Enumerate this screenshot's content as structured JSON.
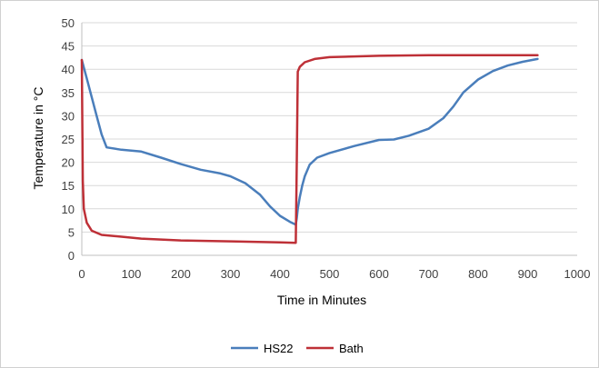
{
  "chart_data": {
    "type": "line",
    "title": "",
    "xlabel": "Time in Minutes",
    "ylabel": "Temperature in °C",
    "xlim": [
      0,
      1000
    ],
    "ylim": [
      0,
      50
    ],
    "xticks": [
      0,
      100,
      200,
      300,
      400,
      500,
      600,
      700,
      800,
      900,
      1000
    ],
    "yticks": [
      0,
      5,
      10,
      15,
      20,
      25,
      30,
      35,
      40,
      45,
      50
    ],
    "grid": "horizontal",
    "legend": "bottom",
    "series": [
      {
        "name": "HS22",
        "color": "#4a7ebb",
        "points": [
          [
            0,
            42
          ],
          [
            10,
            38
          ],
          [
            20,
            34
          ],
          [
            30,
            30
          ],
          [
            40,
            26
          ],
          [
            50,
            23.2
          ],
          [
            80,
            22.7
          ],
          [
            120,
            22.3
          ],
          [
            160,
            21
          ],
          [
            200,
            19.6
          ],
          [
            240,
            18.4
          ],
          [
            280,
            17.6
          ],
          [
            300,
            17
          ],
          [
            330,
            15.5
          ],
          [
            360,
            13
          ],
          [
            380,
            10.5
          ],
          [
            400,
            8.5
          ],
          [
            420,
            7.2
          ],
          [
            432,
            6.6
          ],
          [
            434,
            8
          ],
          [
            436,
            10
          ],
          [
            440,
            12.5
          ],
          [
            445,
            15
          ],
          [
            450,
            17
          ],
          [
            460,
            19.5
          ],
          [
            475,
            21
          ],
          [
            500,
            22
          ],
          [
            550,
            23.5
          ],
          [
            600,
            24.8
          ],
          [
            630,
            24.9
          ],
          [
            660,
            25.7
          ],
          [
            700,
            27.2
          ],
          [
            730,
            29.5
          ],
          [
            750,
            32
          ],
          [
            770,
            35
          ],
          [
            800,
            37.8
          ],
          [
            830,
            39.6
          ],
          [
            860,
            40.8
          ],
          [
            890,
            41.6
          ],
          [
            920,
            42.2
          ]
        ]
      },
      {
        "name": "Bath",
        "color": "#be3037",
        "points": [
          [
            0,
            42
          ],
          [
            1,
            30
          ],
          [
            2,
            16
          ],
          [
            4,
            10
          ],
          [
            10,
            7
          ],
          [
            20,
            5.3
          ],
          [
            40,
            4.4
          ],
          [
            80,
            4
          ],
          [
            120,
            3.6
          ],
          [
            200,
            3.2
          ],
          [
            300,
            3
          ],
          [
            400,
            2.8
          ],
          [
            432,
            2.7
          ],
          [
            434,
            20
          ],
          [
            436,
            39.5
          ],
          [
            440,
            40.5
          ],
          [
            450,
            41.5
          ],
          [
            470,
            42.2
          ],
          [
            500,
            42.6
          ],
          [
            600,
            42.9
          ],
          [
            700,
            43
          ],
          [
            800,
            43
          ],
          [
            920,
            43
          ]
        ]
      }
    ]
  }
}
